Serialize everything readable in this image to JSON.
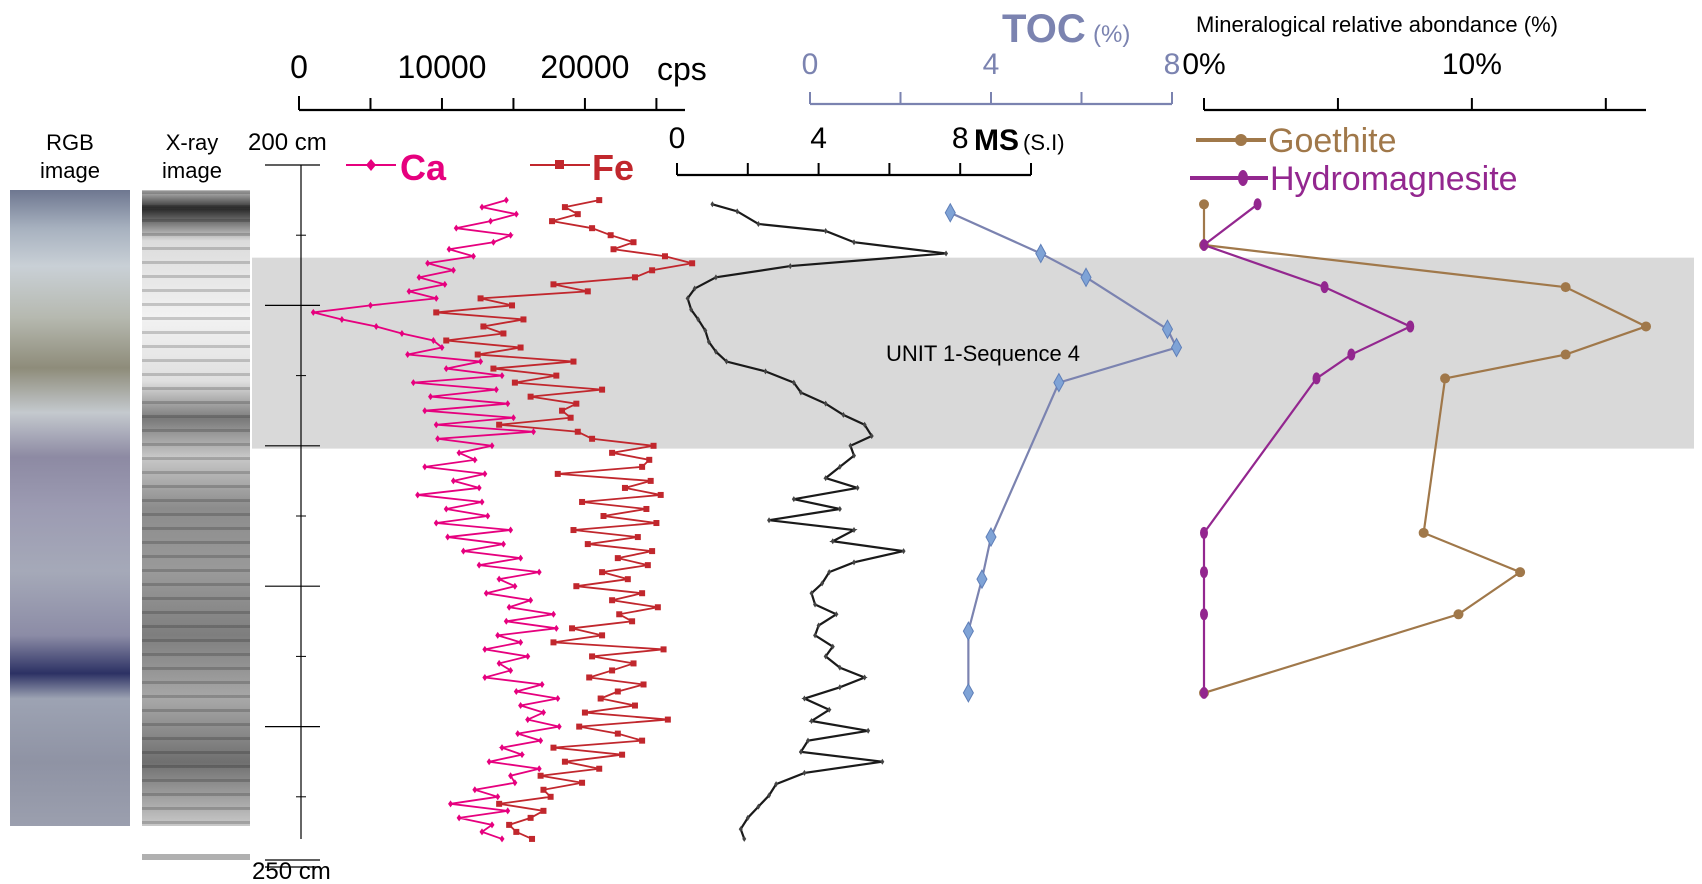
{
  "chart_data": {
    "type": "line",
    "depth": {
      "top_label": "200 cm",
      "bottom_label": "250 cm",
      "range": [
        200,
        250
      ]
    },
    "columns": {
      "rgb": {
        "label_line1": "RGB",
        "label_line2": "image"
      },
      "xray": {
        "label_line1": "X-ray",
        "label_line2": "image"
      }
    },
    "xrf": {
      "axis_ticks": [
        "0",
        "10000",
        "20000"
      ],
      "unit": "cps",
      "xlim": [
        0,
        27000
      ],
      "series": [
        {
          "name": "Ca",
          "color": "#e6007e",
          "depth": [
            202.5,
            203.0,
            203.5,
            204.0,
            204.5,
            205.0,
            205.5,
            206.0,
            206.5,
            207.0,
            207.5,
            208.0,
            208.5,
            209.0,
            209.5,
            210.0,
            210.5,
            211.0,
            211.5,
            212.0,
            212.5,
            213.0,
            213.5,
            214.0,
            214.5,
            215.0,
            215.5,
            216.0,
            216.5,
            217.0,
            217.5,
            218.0,
            218.5,
            219.0,
            219.5,
            220.0,
            220.5,
            221.0,
            221.5,
            222.0,
            222.5,
            223.0,
            223.5,
            224.0,
            224.5,
            225.0,
            225.5,
            226.0,
            226.5,
            227.0,
            227.5,
            228.0,
            228.5,
            229.0,
            229.5,
            230.0,
            230.5,
            231.0,
            231.5,
            232.0,
            232.5,
            233.0,
            233.5,
            234.0,
            234.5,
            235.0,
            235.5,
            236.0,
            236.5,
            237.0,
            237.5,
            238.0,
            238.5,
            239.0,
            239.5,
            240.0,
            240.5,
            241.0,
            241.5,
            242.0,
            242.5,
            243.0,
            243.5,
            244.0,
            244.5,
            245.0,
            245.5,
            246.0,
            246.5,
            247.0,
            247.5,
            248.0
          ],
          "values": [
            14500,
            12800,
            15200,
            13400,
            11000,
            14800,
            13600,
            10500,
            12200,
            9000,
            10800,
            8400,
            10200,
            7700,
            9600,
            5000,
            1000,
            3000,
            5400,
            7200,
            9400,
            10000,
            7600,
            12700,
            10300,
            14200,
            8000,
            13800,
            9200,
            14600,
            8800,
            15000,
            9600,
            16400,
            9700,
            13500,
            11200,
            12300,
            8800,
            13000,
            10800,
            12600,
            8300,
            12800,
            10300,
            13200,
            9600,
            14800,
            10400,
            14300,
            11500,
            15500,
            12600,
            16800,
            14000,
            15100,
            13100,
            16200,
            14700,
            17800,
            14500,
            18000,
            13900,
            15500,
            13000,
            16000,
            14000,
            14800,
            13000,
            17000,
            15200,
            18100,
            15500,
            17100,
            16000,
            18200,
            15300,
            16900,
            14200,
            15600,
            13300,
            16800,
            14800,
            15100,
            12300,
            13900,
            10600,
            14600,
            11200,
            13500,
            12800,
            14200
          ]
        },
        {
          "name": "Fe",
          "color": "#c1272d",
          "depth": [
            202.5,
            203.0,
            203.5,
            204.0,
            204.5,
            205.0,
            205.5,
            206.0,
            206.5,
            207.0,
            207.5,
            208.0,
            208.5,
            209.0,
            209.5,
            210.0,
            210.5,
            211.0,
            211.5,
            212.0,
            212.5,
            213.0,
            213.5,
            214.0,
            214.5,
            215.0,
            215.5,
            216.0,
            216.5,
            217.0,
            217.5,
            218.0,
            218.5,
            219.0,
            219.5,
            220.0,
            220.5,
            221.0,
            221.5,
            222.0,
            222.5,
            223.0,
            223.5,
            224.0,
            224.5,
            225.0,
            225.5,
            226.0,
            226.5,
            227.0,
            227.5,
            228.0,
            228.5,
            229.0,
            229.5,
            230.0,
            230.5,
            231.0,
            231.5,
            232.0,
            232.5,
            233.0,
            233.5,
            234.0,
            234.5,
            235.0,
            235.5,
            236.0,
            236.5,
            237.0,
            237.5,
            238.0,
            238.5,
            239.0,
            239.5,
            240.0,
            240.5,
            241.0,
            241.5,
            242.0,
            242.5,
            243.0,
            243.5,
            244.0,
            244.5,
            245.0,
            245.5,
            246.0,
            246.5,
            247.0,
            247.5,
            248.0
          ],
          "values": [
            21000,
            18600,
            19500,
            17700,
            20500,
            21800,
            23400,
            22000,
            25600,
            27500,
            24700,
            23500,
            17800,
            20200,
            12700,
            14900,
            9600,
            15700,
            12900,
            14300,
            10300,
            15500,
            12500,
            19200,
            13600,
            18000,
            15100,
            21200,
            16200,
            19400,
            18400,
            19000,
            14000,
            19500,
            20500,
            24800,
            21900,
            24500,
            24000,
            18100,
            24600,
            22800,
            25300,
            19800,
            24300,
            21300,
            25000,
            19200,
            23700,
            20200,
            24700,
            22300,
            24400,
            21200,
            23000,
            19400,
            24000,
            21900,
            25100,
            22400,
            23300,
            19100,
            21200,
            17800,
            25500,
            20500,
            23400,
            21900,
            20300,
            24100,
            22300,
            21100,
            23500,
            20000,
            25800,
            19600,
            22300,
            24000,
            17800,
            22600,
            18600,
            21000,
            16900,
            19800,
            17100,
            17600,
            14000,
            17100,
            16200,
            14700,
            15200,
            16300
          ]
        }
      ]
    },
    "ms": {
      "title": "MS",
      "unit": "(S.I)",
      "axis_ticks": [
        "0",
        "4",
        "8"
      ],
      "xlim": [
        0,
        10
      ],
      "color": "#1a1a1a",
      "depth": [
        202.8,
        203.3,
        204.2,
        204.7,
        205.5,
        206.3,
        207.2,
        208.0,
        208.8,
        209.5,
        210.3,
        211.0,
        211.8,
        212.6,
        213.3,
        214.0,
        214.7,
        215.5,
        216.2,
        217.0,
        217.8,
        218.5,
        219.3,
        220.0,
        220.7,
        221.5,
        222.3,
        223.0,
        223.8,
        224.5,
        225.3,
        226.0,
        226.8,
        227.5,
        228.3,
        229.0,
        229.8,
        230.5,
        231.3,
        232.0,
        232.8,
        233.5,
        234.3,
        235.0,
        235.8,
        236.5,
        237.2,
        238.0,
        238.8,
        239.6,
        240.3,
        241.0,
        241.8,
        242.5,
        243.3,
        244.1,
        244.9,
        245.7,
        246.5,
        247.3,
        248.0
      ],
      "values": [
        1.0,
        1.7,
        2.3,
        4.2,
        5.0,
        7.6,
        3.2,
        1.1,
        0.5,
        0.3,
        0.4,
        0.6,
        0.8,
        0.9,
        1.1,
        1.4,
        2.5,
        3.3,
        3.5,
        4.2,
        4.7,
        5.3,
        5.5,
        4.9,
        5.0,
        4.6,
        4.2,
        5.1,
        3.3,
        4.6,
        2.6,
        5.0,
        4.4,
        6.4,
        5.0,
        4.3,
        4.1,
        3.8,
        3.9,
        4.5,
        4.0,
        3.9,
        4.4,
        4.2,
        4.6,
        5.3,
        4.6,
        3.6,
        4.3,
        3.8,
        5.4,
        3.7,
        3.5,
        5.8,
        3.6,
        2.8,
        2.6,
        2.3,
        2.0,
        1.8,
        1.9
      ]
    },
    "toc": {
      "title": "TOC",
      "unit": "(%)",
      "axis_ticks": [
        "0",
        "4",
        "8"
      ],
      "xlim": [
        0,
        8
      ],
      "color": "#7b83b0",
      "depth": [
        203.4,
        206.3,
        208.0,
        211.7,
        213.0,
        215.5,
        226.5,
        229.5,
        233.2,
        237.6
      ],
      "values": [
        3.1,
        5.1,
        6.1,
        7.9,
        8.1,
        5.5,
        4.0,
        3.8,
        3.5,
        3.5
      ]
    },
    "minerals": {
      "title": "Mineralogical relative abondance (%)",
      "axis_ticks": [
        "0%",
        "10%"
      ],
      "xlim": [
        0,
        16.5
      ],
      "series": [
        {
          "name": "Goethite",
          "color": "#a0784a",
          "depth": [
            202.8,
            205.7,
            208.7,
            211.5,
            213.5,
            215.2,
            226.2,
            229.0,
            232.0,
            237.6
          ],
          "values": [
            0.0,
            0.0,
            13.5,
            16.5,
            13.5,
            9.0,
            8.2,
            11.8,
            9.5,
            0.0
          ]
        },
        {
          "name": "Hydromagnesite",
          "color": "#93278f",
          "depth": [
            202.8,
            205.7,
            208.7,
            211.5,
            213.5,
            215.2,
            226.2,
            229.0,
            232.0,
            237.6
          ],
          "values": [
            2.0,
            0.0,
            4.5,
            7.7,
            5.5,
            4.2,
            0.0,
            0.0,
            0.0,
            0.0
          ]
        }
      ]
    },
    "annotations": [
      {
        "text": "UNIT 1-Sequence 4",
        "depth_range": [
          206.6,
          220.2
        ]
      }
    ]
  }
}
